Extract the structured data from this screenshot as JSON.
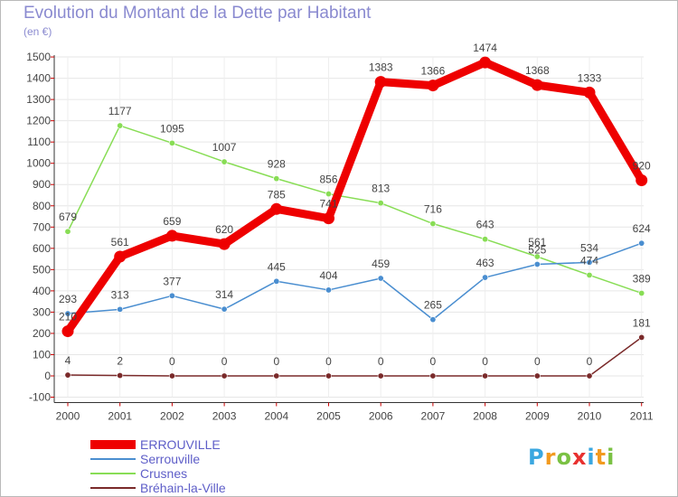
{
  "chart_data": {
    "type": "line",
    "title": "Evolution du Montant de la Dette par Habitant",
    "subtitle": "(en €)",
    "categories": [
      "2000",
      "2001",
      "2002",
      "2003",
      "2004",
      "2005",
      "2006",
      "2007",
      "2008",
      "2009",
      "2010",
      "2011"
    ],
    "ylim": [
      -100,
      1500
    ],
    "yticks": [
      -100,
      0,
      100,
      200,
      300,
      400,
      500,
      600,
      700,
      800,
      900,
      1000,
      1100,
      1200,
      1300,
      1400,
      1500
    ],
    "grid": true,
    "legend_position": "bottom-left",
    "series": [
      {
        "name": "ERROUVILLE",
        "color": "#ee0000",
        "values": [
          210,
          561,
          659,
          620,
          785,
          741,
          1383,
          1366,
          1474,
          1368,
          1333,
          920
        ],
        "labels": [
          "210",
          "561",
          "659",
          "620",
          "785",
          "741",
          "1383",
          "1366",
          "1474",
          "1368",
          "1333",
          "920"
        ]
      },
      {
        "name": "Serrouville",
        "color": "#4a8ed0",
        "values": [
          293,
          313,
          377,
          314,
          445,
          404,
          459,
          265,
          463,
          525,
          534,
          624
        ],
        "labels": [
          "293",
          "313",
          "377",
          "314",
          "445",
          "404",
          "459",
          "265",
          "463",
          "525",
          "534",
          "624"
        ]
      },
      {
        "name": "Crusnes",
        "color": "#88dd55",
        "values": [
          679,
          1177,
          1095,
          1007,
          928,
          856,
          813,
          716,
          643,
          561,
          474,
          389
        ],
        "labels": [
          "679",
          "1177",
          "1095",
          "1007",
          "928",
          "856",
          "813",
          "716",
          "643",
          "561",
          "474",
          "389"
        ]
      },
      {
        "name": "Bréhain-la-Ville",
        "color": "#7a2a2a",
        "values": [
          4,
          2,
          0,
          0,
          0,
          0,
          0,
          0,
          0,
          0,
          0,
          181
        ],
        "labels": [
          "4",
          "2",
          "0",
          "0",
          "0",
          "0",
          "0",
          "0",
          "0",
          "0",
          "0",
          "181"
        ]
      }
    ]
  },
  "logo": {
    "text": "Proxiti",
    "letters": [
      "P",
      "r",
      "o",
      "x",
      "i",
      "t",
      "i"
    ],
    "colors": [
      "#3aa7e0",
      "#f29a1f",
      "#7ac143",
      "#e8312f",
      "#3aa7e0",
      "#f29a1f",
      "#7ac143"
    ]
  }
}
